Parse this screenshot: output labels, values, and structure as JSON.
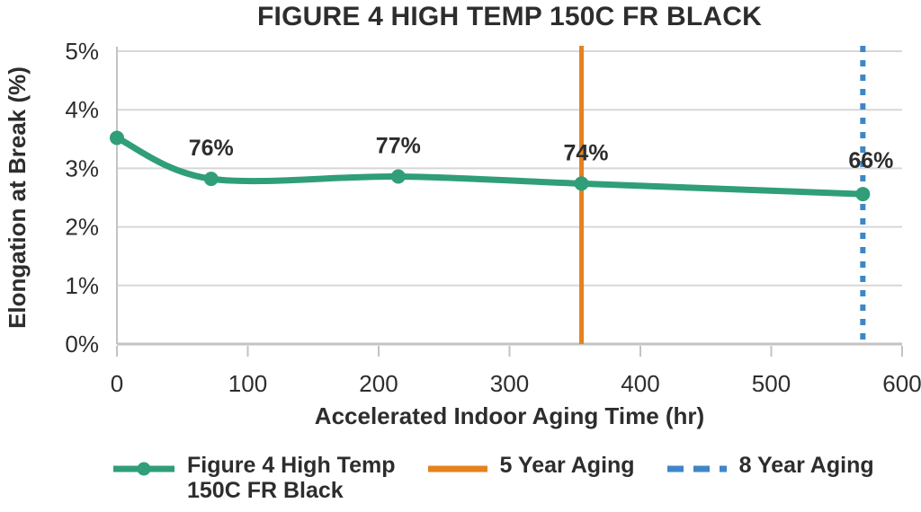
{
  "chart_data": {
    "type": "line",
    "title": "FIGURE 4 HIGH TEMP 150C FR BLACK",
    "xlabel": "Accelerated Indoor Aging Time (hr)",
    "ylabel": "Elongation at Break (%)",
    "xlim": [
      0,
      600
    ],
    "ylim": [
      0,
      5
    ],
    "x_ticks": [
      0,
      100,
      200,
      300,
      400,
      500,
      600
    ],
    "y_ticks": [
      0,
      1,
      2,
      3,
      4,
      5
    ],
    "y_tick_suffix": "%",
    "grid": "horizontal",
    "legend_position": "bottom",
    "series": [
      {
        "name": "Figure 4 High Temp 150C FR Black",
        "color": "#2F9E79",
        "points": [
          {
            "x": 0,
            "y": 3.52
          },
          {
            "x": 72,
            "y": 2.82,
            "label": "76%"
          },
          {
            "x": 215,
            "y": 2.86,
            "label": "77%"
          },
          {
            "x": 355,
            "y": 2.74,
            "label": "74%",
            "label_dx": 5
          },
          {
            "x": 570,
            "y": 2.56,
            "label": "66%",
            "label_dx": 9,
            "label_dy": -3
          }
        ]
      }
    ],
    "ref_lines": [
      {
        "x": 355,
        "name": "5 Year Aging",
        "color": "#E5821E",
        "style": "solid"
      },
      {
        "x": 570,
        "name": "8 Year Aging",
        "color": "#3E86C7",
        "style": "dashed"
      }
    ],
    "legend": [
      {
        "label_lines": [
          "Figure 4 High Temp",
          "150C FR Black"
        ],
        "marker": "line-with-dot",
        "color": "#2F9E79"
      },
      {
        "label_lines": [
          "5 Year Aging"
        ],
        "marker": "solid-line",
        "color": "#E5821E"
      },
      {
        "label_lines": [
          "8 Year Aging"
        ],
        "marker": "dashed-line",
        "color": "#3E86C7"
      }
    ],
    "colors": {
      "grid": "#D7D7D7",
      "axis": "#C3C3C3",
      "text": "#2D2D2D"
    }
  }
}
